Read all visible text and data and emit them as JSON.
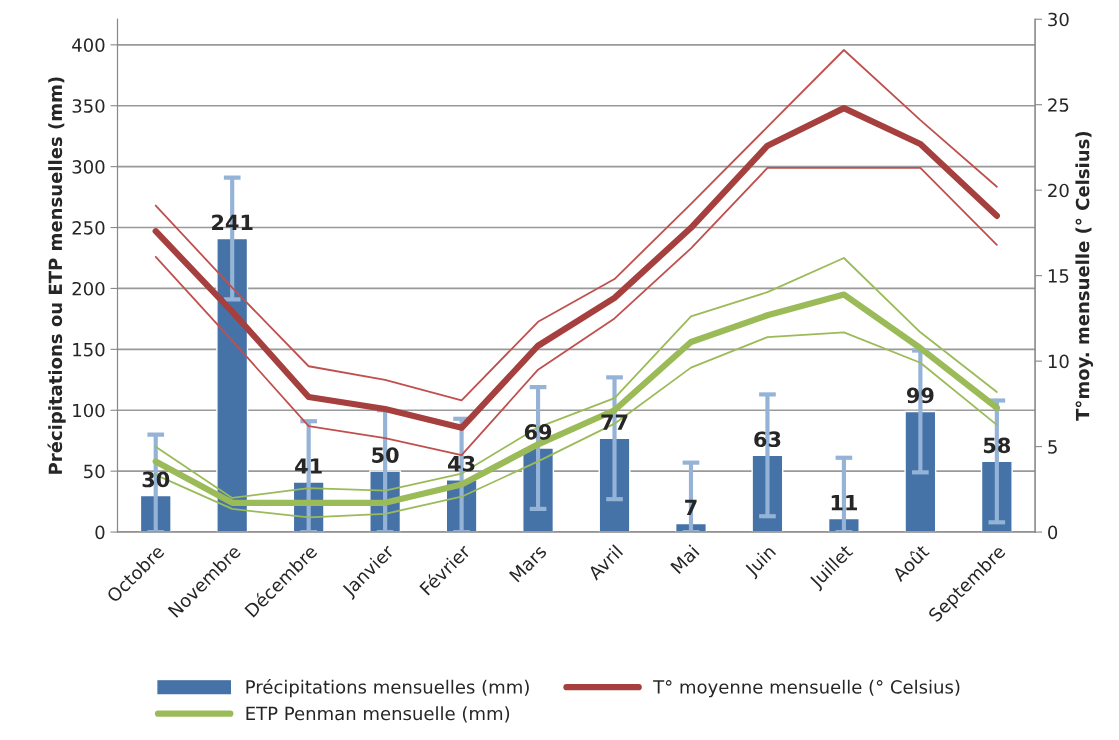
{
  "chart_data": {
    "type": "bar",
    "categories": [
      "Octobre",
      "Novembre",
      "Décembre",
      "Janvier",
      "Février",
      "Mars",
      "Avril",
      "Mai",
      "Juin",
      "Juillet",
      "Août",
      "Septembre"
    ],
    "ylabel": "Précipitations ou ETP mensuelles (mm)",
    "y2label": "T°moy. mensuelle (° Celsius)",
    "ylim": [
      0,
      421
    ],
    "yticks": [
      0,
      50,
      100,
      150,
      200,
      250,
      300,
      350,
      400
    ],
    "y2lim": [
      0,
      30
    ],
    "y2ticks": [
      0,
      5,
      10,
      15,
      20,
      25,
      30
    ],
    "series": [
      {
        "name": "Précipitations mensuelles (mm)",
        "color": "#4572a7",
        "data_labels": true,
        "values": [
          30,
          241,
          41,
          50,
          43,
          69,
          77,
          7,
          63,
          11,
          99,
          58
        ],
        "errors": [
          [
            0,
            80
          ],
          50,
          [
            0,
            91
          ],
          50,
          [
            0,
            93
          ],
          50,
          50,
          [
            0,
            57
          ],
          50,
          [
            0,
            61
          ],
          50,
          50
        ]
      },
      {
        "name": "ETP Penman mensuelle (mm)",
        "type": "line",
        "color": "#9bbb59",
        "values": [
          58,
          24,
          24,
          24,
          39,
          72,
          100,
          156,
          178,
          195,
          151,
          102
        ]
      },
      {
        "type": "line",
        "color": "#9bbb59",
        "values": [
          47,
          19,
          12,
          15,
          29,
          58,
          89,
          135,
          160,
          164,
          139,
          88
        ]
      },
      {
        "type": "line",
        "color": "#9bbb59",
        "values": [
          70,
          28,
          36,
          34,
          48,
          86,
          110,
          177,
          197,
          225,
          164,
          115
        ]
      },
      {
        "name": "T° moyenne mensuelle (° Celsius)",
        "type": "line",
        "axis": "y2",
        "color": "#a5403e",
        "values": [
          17.6,
          12.9,
          7.9,
          7.2,
          6.1,
          10.9,
          13.7,
          17.8,
          22.6,
          24.8,
          22.7,
          18.5
        ]
      },
      {
        "type": "line",
        "axis": "y2",
        "color": "#c0504d",
        "values": [
          16.1,
          11.2,
          6.2,
          5.5,
          4.5,
          9.5,
          12.5,
          16.6,
          21.3,
          21.3,
          21.3,
          16.8
        ]
      },
      {
        "type": "line",
        "axis": "y2",
        "color": "#c0504d",
        "values": [
          19.1,
          14.3,
          9.7,
          8.9,
          7.7,
          12.3,
          14.8,
          19.2,
          23.7,
          28.2,
          24.1,
          20.2
        ]
      }
    ],
    "grid": "y",
    "legend": "bottom"
  }
}
